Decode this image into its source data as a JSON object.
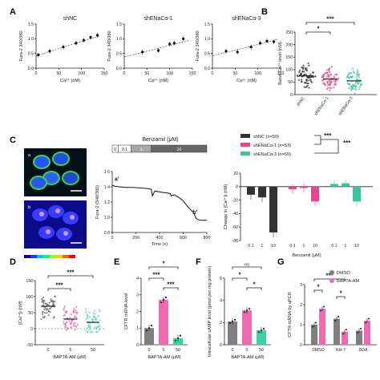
{
  "panels": {
    "A": "A",
    "B": "B",
    "C": "C",
    "D": "D",
    "E": "E",
    "F": "F",
    "G": "G"
  },
  "colors": {
    "shNC": "#333333",
    "shENaCa1": "#e8448f",
    "shENaCa3": "#3cc6a0",
    "bar_gray": "#808080",
    "bar_pink": "#f06ab2",
    "bar_teal": "#3dd0a8",
    "dmso": "#7f7f7f",
    "bapta": "#f06ab2"
  },
  "chart_data": [
    {
      "id": "A1",
      "type": "scatter",
      "title": "shNC",
      "xlabel": "Ca²⁺ (nM)",
      "ylabel": "Fura-2 340/380",
      "xlim": [
        0,
        150
      ],
      "ylim": [
        0,
        1.5
      ],
      "xticks": [
        "0",
        "50",
        "100",
        "150"
      ],
      "yticks": [
        "0.0",
        "0.5",
        "1.0",
        "1.5"
      ],
      "points": [
        {
          "x": 5,
          "y": 0.45
        },
        {
          "x": 30,
          "y": 0.58
        },
        {
          "x": 60,
          "y": 0.72
        },
        {
          "x": 88,
          "y": 0.85
        },
        {
          "x": 105,
          "y": 0.95
        },
        {
          "x": 120,
          "y": 1.05
        },
        {
          "x": 135,
          "y": 1.12
        }
      ],
      "fit": [
        [
          0,
          0.42
        ],
        [
          140,
          1.1
        ]
      ]
    },
    {
      "id": "A2",
      "type": "scatter",
      "title": "shENaCα-1",
      "xlabel": "Ca²⁺ (nM)",
      "ylabel": "Fura-2 340/380",
      "xlim": [
        0,
        150
      ],
      "ylim": [
        0,
        1.5
      ],
      "xticks": [
        "0",
        "50",
        "100",
        "150"
      ],
      "yticks": [
        "0.0",
        "0.5",
        "1.0",
        "1.5"
      ],
      "points": [
        {
          "x": 40,
          "y": 0.55
        },
        {
          "x": 75,
          "y": 0.6
        },
        {
          "x": 100,
          "y": 0.82
        },
        {
          "x": 110,
          "y": 0.85
        },
        {
          "x": 130,
          "y": 1.0
        }
      ],
      "fit": [
        [
          0,
          0.38
        ],
        [
          145,
          0.95
        ]
      ]
    },
    {
      "id": "A3",
      "type": "scatter",
      "title": "shENaCα-3",
      "xlabel": "Ca²⁺ (nM)",
      "ylabel": "Fura-2 340/380",
      "xlim": [
        0,
        150
      ],
      "ylim": [
        0,
        1.5
      ],
      "xticks": [
        "0",
        "50",
        "100",
        "150"
      ],
      "yticks": [
        "0.0",
        "0.5",
        "1.0",
        "1.5"
      ],
      "points": [
        {
          "x": 30,
          "y": 0.58
        },
        {
          "x": 55,
          "y": 0.55
        },
        {
          "x": 85,
          "y": 0.72
        },
        {
          "x": 105,
          "y": 0.85
        },
        {
          "x": 120,
          "y": 0.92
        },
        {
          "x": 135,
          "y": 0.9
        }
      ],
      "fit": [
        [
          0,
          0.42
        ],
        [
          145,
          0.98
        ]
      ]
    },
    {
      "id": "B",
      "type": "scatter",
      "ylabel": "Basal Ca²⁺ level (nM)",
      "ylim": [
        0,
        250
      ],
      "yticks": [
        "0",
        "50",
        "100",
        "150",
        "200",
        "250"
      ],
      "categories": [
        "shNC",
        "shENaCα-1",
        "shENaCα-3"
      ],
      "means": [
        75,
        62,
        55
      ],
      "sig": [
        {
          "pair": [
            0,
            1
          ],
          "label": "*"
        },
        {
          "pair": [
            0,
            2
          ],
          "label": "***"
        }
      ]
    },
    {
      "id": "C_trace",
      "type": "line",
      "xlabel": "Time (s)",
      "ylabel": "Fura-2 (340/380)",
      "xlim": [
        0,
        800
      ],
      "ylim": [
        0.6,
        1.6
      ],
      "xticks": [
        "0",
        "200",
        "400",
        "600",
        "800"
      ],
      "yticks": [
        "0.8",
        "1.0",
        "1.2",
        "1.4",
        "1.6"
      ],
      "benzamil_title": "Benzamil (μM)",
      "benzamil_steps": [
        "0",
        "0.1",
        "1",
        "10"
      ],
      "annotations": [
        "a'",
        "b'"
      ],
      "x": [
        0,
        20,
        60,
        120,
        180,
        240,
        300,
        330,
        340,
        360,
        420,
        460,
        490,
        500,
        520,
        560,
        600,
        640,
        690,
        710,
        740,
        760,
        800
      ],
      "y": [
        1.38,
        1.36,
        1.35,
        1.34,
        1.34,
        1.33,
        1.32,
        1.31,
        1.2,
        1.28,
        1.26,
        1.25,
        1.24,
        1.2,
        1.22,
        1.18,
        1.12,
        1.02,
        0.92,
        0.83,
        0.8,
        0.8,
        0.8
      ]
    },
    {
      "id": "C_bar",
      "type": "bar",
      "xlabel": "Benzamil (μM)",
      "ylabel": "Change in [Ca²⁺]i (nM)",
      "ylim": [
        -80,
        20
      ],
      "yticks": [
        "-80",
        "-60",
        "-40",
        "-20",
        "0",
        "20"
      ],
      "categories": [
        "0.1",
        "1",
        "10",
        "0.1",
        "1",
        "10",
        "0.1",
        "1",
        "10"
      ],
      "groups": [
        "shNC",
        "shENaCα-1",
        "shENaCα-3"
      ],
      "legend": [
        "shNC (n=50)",
        "shENaCα-1 (n=53)",
        "shENaCα-3 (n=50)"
      ],
      "values": [
        -12,
        -16,
        -68,
        -4,
        -2,
        -22,
        4,
        5,
        -22
      ],
      "sig": [
        "***",
        "***"
      ]
    },
    {
      "id": "D",
      "type": "scatter",
      "xlabel": "BAPTA-AM (μM)",
      "ylabel": "[Ca²⁺]i (nM)",
      "ylim": [
        -50,
        150
      ],
      "yticks": [
        "-50",
        "0",
        "50",
        "100",
        "150"
      ],
      "categories": [
        "0",
        "5",
        "50"
      ],
      "means": [
        70,
        30,
        20
      ],
      "sig": [
        "***",
        "***"
      ]
    },
    {
      "id": "E",
      "type": "bar",
      "xlabel": "BAPTA-AM (μM)",
      "ylabel": "CFTR mRNA level",
      "ylim": [
        0,
        4
      ],
      "yticks": [
        "0",
        "1",
        "2",
        "3",
        "4"
      ],
      "categories": [
        "0",
        "5",
        "50"
      ],
      "values": [
        1.0,
        2.7,
        0.4
      ],
      "sig": [
        "*",
        "***",
        "***"
      ]
    },
    {
      "id": "F",
      "type": "bar",
      "xlabel": "BAPTA-AM (μM)",
      "ylabel": "Intracellular cAMP level (pmol per mg protein)",
      "ylim": [
        0,
        6
      ],
      "yticks": [
        "0",
        "2",
        "4",
        "6"
      ],
      "categories": [
        "0",
        "5",
        "50"
      ],
      "values": [
        2.1,
        3.1,
        1.3
      ],
      "sig": [
        "ns",
        "*",
        "*"
      ]
    },
    {
      "id": "G",
      "type": "bar",
      "xlabel": "",
      "ylabel": "CFTR mRNA by qPCR",
      "ylim": [
        0,
        3
      ],
      "yticks": [
        "0",
        "1",
        "2",
        "3"
      ],
      "categories": [
        "DMSO",
        "KH-7",
        "DDA"
      ],
      "series": [
        {
          "name": "DMSO",
          "values": [
            1.0,
            1.3,
            0.7
          ]
        },
        {
          "name": "BAPTA-AM",
          "values": [
            1.8,
            0.65,
            1.2
          ]
        }
      ],
      "sig": [
        "*",
        "***",
        "*"
      ]
    }
  ]
}
